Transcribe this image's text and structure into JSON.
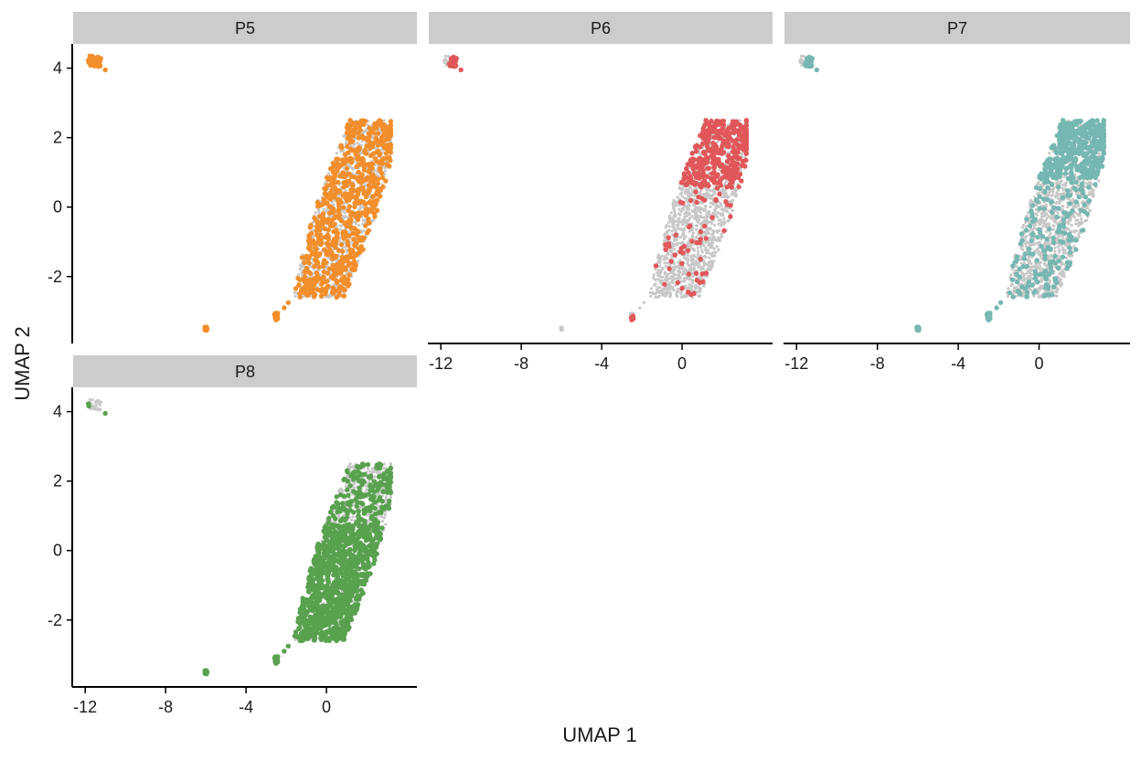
{
  "chart_data": {
    "type": "scatter",
    "xlabel": "UMAP 1",
    "ylabel": "UMAP 2",
    "xlim": [
      -12.6,
      4.5
    ],
    "ylim": [
      -3.9,
      4.7
    ],
    "x_ticks": [
      -12,
      -8,
      -4,
      0
    ],
    "y_ticks": [
      -2,
      0,
      2,
      4
    ],
    "x_tick_labels": [
      "-12",
      "-8",
      "-4",
      "0"
    ],
    "y_tick_labels": [
      "-2",
      "0",
      "2",
      "4"
    ],
    "background_color": "#c8c8c8",
    "grid": false,
    "legend": "none",
    "facets": [
      {
        "label": "P5",
        "color": "#f28e2b",
        "highlight": "scattered"
      },
      {
        "label": "P6",
        "color": "#e15759",
        "highlight": "upper"
      },
      {
        "label": "P7",
        "color": "#76b7b2",
        "highlight": "upper-dense"
      },
      {
        "label": "P8",
        "color": "#59a14f",
        "highlight": "lower-dense"
      }
    ],
    "clusters": [
      {
        "name": "main",
        "x_range": [
          -1.9,
          3.2
        ],
        "y_range": [
          -2.7,
          2.6
        ]
      },
      {
        "name": "top-left",
        "center": [
          -11.6,
          4.2
        ],
        "extent": [
          -12.0,
          4.05,
          -10.8,
          4.35
        ]
      },
      {
        "name": "bottom-mid",
        "center": [
          -6.0,
          -3.5
        ]
      },
      {
        "name": "bottom-right",
        "center": [
          -2.5,
          -3.15
        ]
      }
    ]
  }
}
